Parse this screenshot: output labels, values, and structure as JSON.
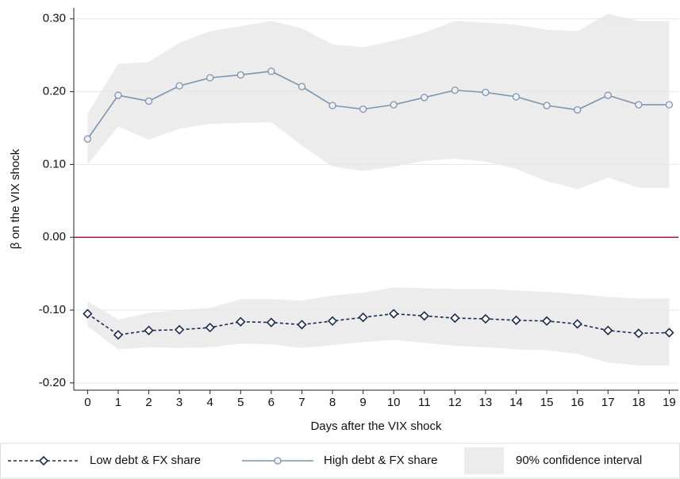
{
  "chart_data": {
    "type": "line",
    "y_label": "β on the VIX shock",
    "x_label": "Days after the VIX shock",
    "x": [
      0,
      1,
      2,
      3,
      4,
      5,
      6,
      7,
      8,
      9,
      10,
      11,
      12,
      13,
      14,
      15,
      16,
      17,
      18,
      19
    ],
    "xlim": [
      -0.45,
      19.3
    ],
    "xticks": [
      0,
      1,
      2,
      3,
      4,
      5,
      6,
      7,
      8,
      9,
      10,
      11,
      12,
      13,
      14,
      15,
      16,
      17,
      18,
      19
    ],
    "ylim": [
      -0.21,
      0.315
    ],
    "yticks": [
      {
        "value": -0.2,
        "label": "-0.20"
      },
      {
        "value": -0.1,
        "label": "-0.10"
      },
      {
        "value": 0,
        "label": "0.00"
      },
      {
        "value": 0.1,
        "label": "0.10"
      },
      {
        "value": 0.2,
        "label": "0.20"
      },
      {
        "value": 0.3,
        "label": "0.30"
      }
    ],
    "grid": true,
    "reference_line": {
      "value": 0,
      "color": "#a21a3c"
    },
    "band_label": "90% confidence interval",
    "band_color": "#ececec",
    "legend": "bottom",
    "series": [
      {
        "name": "Low debt & FX share",
        "color": "#1c2b4d",
        "marker": "diamond",
        "dashed": true,
        "values": [
          -0.105,
          -0.134,
          -0.128,
          -0.127,
          -0.124,
          -0.116,
          -0.117,
          -0.12,
          -0.115,
          -0.11,
          -0.105,
          -0.108,
          -0.111,
          -0.112,
          -0.114,
          -0.115,
          -0.119,
          -0.128,
          -0.132,
          -0.131
        ],
        "ci_upper": [
          -0.088,
          -0.113,
          -0.104,
          -0.1,
          -0.097,
          -0.085,
          -0.085,
          -0.087,
          -0.08,
          -0.076,
          -0.069,
          -0.07,
          -0.071,
          -0.071,
          -0.073,
          -0.075,
          -0.078,
          -0.082,
          -0.084,
          -0.084
        ],
        "ci_lower": [
          -0.122,
          -0.154,
          -0.151,
          -0.152,
          -0.151,
          -0.146,
          -0.147,
          -0.152,
          -0.148,
          -0.144,
          -0.141,
          -0.145,
          -0.149,
          -0.151,
          -0.154,
          -0.155,
          -0.16,
          -0.172,
          -0.176,
          -0.176
        ]
      },
      {
        "name": "High debt & FX share",
        "color": "#7d95ae",
        "marker": "circle",
        "dashed": false,
        "values": [
          0.135,
          0.195,
          0.187,
          0.208,
          0.219,
          0.223,
          0.228,
          0.207,
          0.181,
          0.176,
          0.182,
          0.192,
          0.202,
          0.199,
          0.193,
          0.181,
          0.175,
          0.195,
          0.182,
          0.182
        ],
        "ci_upper": [
          0.17,
          0.238,
          0.241,
          0.267,
          0.283,
          0.29,
          0.297,
          0.287,
          0.265,
          0.261,
          0.27,
          0.281,
          0.297,
          0.295,
          0.292,
          0.285,
          0.283,
          0.307,
          0.297,
          0.297
        ],
        "ci_lower": [
          0.1,
          0.152,
          0.134,
          0.149,
          0.156,
          0.157,
          0.158,
          0.126,
          0.097,
          0.091,
          0.097,
          0.105,
          0.108,
          0.104,
          0.094,
          0.077,
          0.066,
          0.082,
          0.068,
          0.068
        ]
      }
    ]
  }
}
